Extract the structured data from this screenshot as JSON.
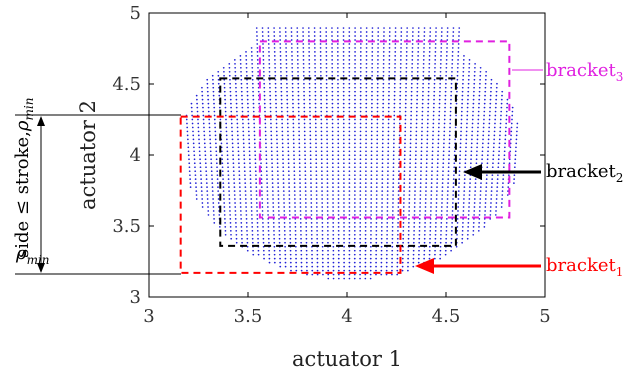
{
  "chart_data": {
    "type": "scatter",
    "xlabel": "actuator 1",
    "ylabel": "actuator 2",
    "xlim": [
      3,
      5
    ],
    "ylim": [
      3,
      5
    ],
    "xticks": [
      "3",
      "3.5",
      "4",
      "4.5",
      "5"
    ],
    "yticks": [
      "3",
      "3.5",
      "4",
      "4.5",
      "5"
    ],
    "grid": false,
    "point_color": "#1f1fd6",
    "workspace_region": {
      "x_min": 3.2,
      "x_max": 4.88,
      "y_min": 3.13,
      "y_max": 4.93
    },
    "brackets": [
      {
        "base": "bracket",
        "sub": "3",
        "color": "#e020e0",
        "x": [
          3.56,
          4.82
        ],
        "y": [
          3.56,
          4.8
        ]
      },
      {
        "base": "bracket",
        "sub": "2",
        "color": "#000000",
        "x": [
          3.36,
          4.55
        ],
        "y": [
          3.36,
          4.54
        ]
      },
      {
        "base": "bracket",
        "sub": "1",
        "color": "#ff0000",
        "x": [
          3.16,
          4.27
        ],
        "y": [
          3.17,
          4.27
        ]
      }
    ],
    "dimension_annotation": {
      "label_main": "side ≤ stroke,",
      "label_rho": "ρ",
      "label_sub": "min",
      "bottom_label_rho": "ρ",
      "bottom_label_sub": "min"
    }
  }
}
